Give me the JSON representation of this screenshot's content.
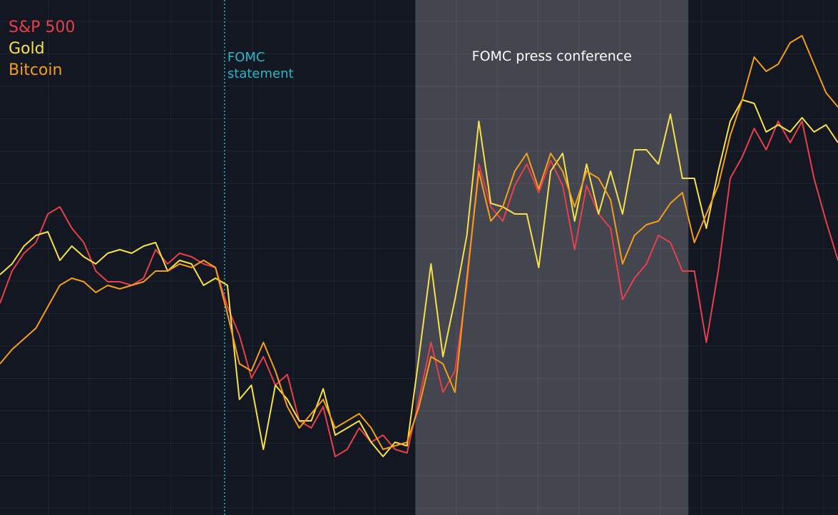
{
  "chart_data": {
    "type": "line",
    "xlim": [
      0,
      70
    ],
    "ylim": [
      0,
      722
    ],
    "grid": true,
    "shaded_span": {
      "start": 34.7,
      "end": 57.5,
      "label": "FOMC press conference"
    },
    "event_line": {
      "x": 18.76,
      "label": "FOMC statement"
    },
    "series": [
      {
        "name": "S&P 500",
        "color": "#e8404a",
        "values": [
          297,
          342,
          367,
          382,
          422,
          432,
          402,
          382,
          342,
          327,
          327,
          322,
          332,
          372,
          352,
          367,
          362,
          352,
          347,
          292,
          252,
          192,
          222,
          182,
          197,
          132,
          122,
          152,
          82,
          92,
          122,
          102,
          112,
          92,
          87,
          162,
          242,
          172,
          202,
          322,
          492,
          432,
          412,
          462,
          492,
          452,
          497,
          462,
          372,
          462,
          422,
          402,
          302,
          332,
          352,
          392,
          382,
          342,
          342,
          242,
          342,
          472,
          502,
          542,
          512,
          552,
          522,
          552,
          472,
          412,
          357
        ]
      },
      {
        "name": "Gold",
        "color": "#f7e14b",
        "values": [
          337,
          352,
          377,
          392,
          397,
          357,
          377,
          362,
          352,
          367,
          372,
          367,
          377,
          382,
          342,
          357,
          352,
          322,
          332,
          322,
          162,
          182,
          92,
          182,
          162,
          132,
          132,
          177,
          112,
          122,
          132,
          102,
          82,
          102,
          97,
          222,
          352,
          222,
          302,
          392,
          552,
          437,
          432,
          422,
          422,
          347,
          482,
          507,
          412,
          492,
          422,
          482,
          422,
          512,
          512,
          492,
          562,
          472,
          472,
          402,
          482,
          552,
          582,
          577,
          537,
          547,
          537,
          557,
          537,
          547,
          522
        ]
      },
      {
        "name": "Bitcoin",
        "color": "#f59e1b",
        "values": [
          212,
          232,
          247,
          262,
          292,
          322,
          332,
          327,
          312,
          322,
          317,
          322,
          327,
          342,
          342,
          352,
          347,
          357,
          347,
          282,
          212,
          202,
          242,
          202,
          152,
          122,
          142,
          162,
          122,
          132,
          142,
          122,
          92,
          97,
          102,
          152,
          222,
          212,
          172,
          332,
          482,
          412,
          432,
          482,
          507,
          457,
          507,
          482,
          432,
          482,
          472,
          442,
          352,
          392,
          407,
          412,
          437,
          452,
          382,
          422,
          462,
          532,
          582,
          642,
          622,
          632,
          662,
          672,
          632,
          592,
          572
        ]
      }
    ]
  }
}
